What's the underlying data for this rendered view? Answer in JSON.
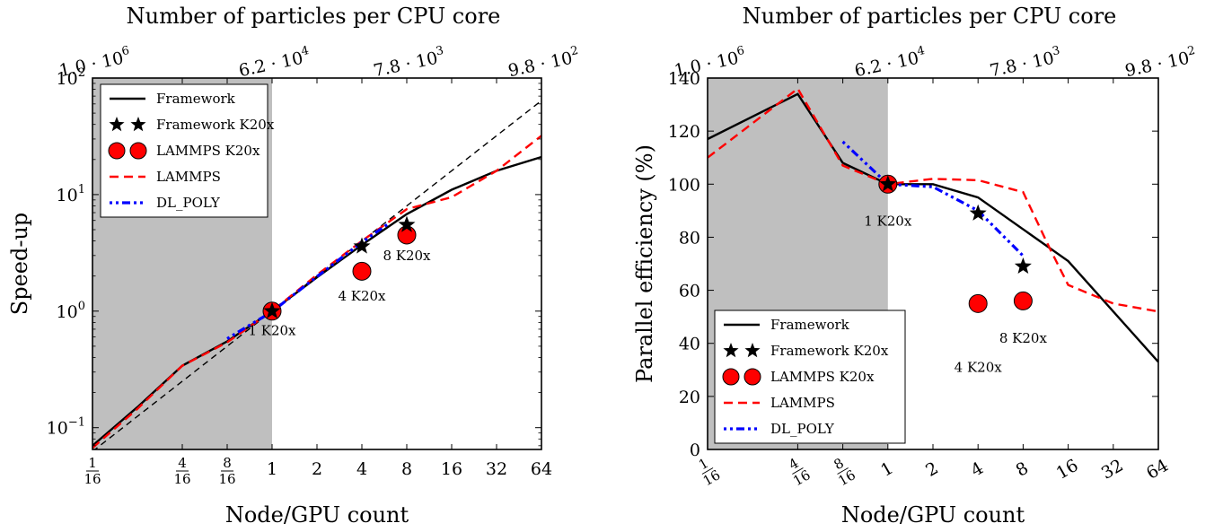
{
  "chart_data": [
    {
      "type": "line",
      "panel": "left",
      "top_title": "Number of particles per CPU core",
      "top_ticks": [
        {
          "x": 0.0625,
          "label": "1.0 · 10",
          "exp": "6"
        },
        {
          "x": 1,
          "label": "6.2 · 10",
          "exp": "4"
        },
        {
          "x": 8,
          "label": "7.8 · 10",
          "exp": "3"
        },
        {
          "x": 64,
          "label": "9.8 · 10",
          "exp": "2"
        }
      ],
      "xlabel": "Node/GPU count",
      "ylabel": "Speed-up",
      "xscale": "log2",
      "yscale": "log10",
      "xlim": [
        0.0625,
        64
      ],
      "ylim": [
        0.065,
        100
      ],
      "shaded_region": [
        0.0625,
        1
      ],
      "x_ticks": [
        {
          "x": 0.0625,
          "num": "1",
          "den": "16"
        },
        {
          "x": 0.25,
          "num": "4",
          "den": "16"
        },
        {
          "x": 0.5,
          "num": "8",
          "den": "16"
        },
        {
          "x": 1,
          "label": "1"
        },
        {
          "x": 2,
          "label": "2"
        },
        {
          "x": 4,
          "label": "4"
        },
        {
          "x": 8,
          "label": "8"
        },
        {
          "x": 16,
          "label": "16"
        },
        {
          "x": 32,
          "label": "32"
        },
        {
          "x": 64,
          "label": "64"
        }
      ],
      "y_ticks": [
        {
          "y": 0.1,
          "label": "10",
          "exp": "−1"
        },
        {
          "y": 1,
          "label": "10",
          "exp": "0"
        },
        {
          "y": 10,
          "label": "10",
          "exp": "1"
        },
        {
          "y": 100,
          "label": "10",
          "exp": "2"
        }
      ],
      "ideal_line": {
        "x": [
          0.0625,
          64
        ],
        "y": [
          0.0625,
          64
        ]
      },
      "legend_position": "top-left",
      "series": [
        {
          "name": "Framework",
          "style": "solid",
          "color": "#000000",
          "x": [
            0.0625,
            0.125,
            0.25,
            0.5,
            1,
            2,
            4,
            8,
            16,
            32,
            64
          ],
          "y": [
            0.07,
            0.15,
            0.34,
            0.55,
            1.0,
            1.95,
            3.7,
            6.8,
            11.0,
            16.0,
            21.0
          ]
        },
        {
          "name": "Framework K20x",
          "style": "star",
          "color": "#000000",
          "x": [
            1,
            4,
            8
          ],
          "y": [
            1.0,
            3.6,
            5.5
          ]
        },
        {
          "name": "LAMMPS K20x",
          "style": "circle",
          "color": "#ff0000",
          "x": [
            1,
            4,
            8
          ],
          "y": [
            1.0,
            2.2,
            4.5
          ]
        },
        {
          "name": "LAMMPS",
          "style": "dashed",
          "color": "#ff0000",
          "x": [
            0.0625,
            0.125,
            0.25,
            0.5,
            1,
            2,
            4,
            8,
            16,
            32,
            64
          ],
          "y": [
            0.067,
            0.145,
            0.34,
            0.54,
            1.0,
            2.05,
            4.0,
            7.5,
            9.5,
            16.0,
            32.0
          ]
        },
        {
          "name": "DL_POLY",
          "style": "dashdot",
          "color": "#0000ff",
          "x": [
            0.5,
            1,
            2,
            4,
            6
          ],
          "y": [
            0.58,
            0.99,
            1.98,
            3.9,
            5.6
          ]
        }
      ],
      "annotations": [
        {
          "text": "1 K20x",
          "x": 1,
          "y": 0.68
        },
        {
          "text": "4 K20x",
          "x": 4,
          "y": 1.35
        },
        {
          "text": "8 K20x",
          "x": 8,
          "y": 3.0
        }
      ]
    },
    {
      "type": "line",
      "panel": "right",
      "top_title": "Number of particles per CPU core",
      "top_ticks": [
        {
          "x": 0.0625,
          "label": "1.0 · 10",
          "exp": "6"
        },
        {
          "x": 1,
          "label": "6.2 · 10",
          "exp": "4"
        },
        {
          "x": 8,
          "label": "7.8 · 10",
          "exp": "3"
        },
        {
          "x": 64,
          "label": "9.8 · 10",
          "exp": "2"
        }
      ],
      "xlabel": "Node/GPU count",
      "ylabel": "Parallel efficiency (%)",
      "xscale": "log2",
      "yscale": "linear",
      "xlim": [
        0.0625,
        64
      ],
      "ylim": [
        0,
        140
      ],
      "shaded_region": [
        0.0625,
        1
      ],
      "x_ticks": [
        {
          "x": 0.0625,
          "num": "1",
          "den": "16"
        },
        {
          "x": 0.25,
          "num": "4",
          "den": "16"
        },
        {
          "x": 0.5,
          "num": "8",
          "den": "16"
        },
        {
          "x": 1,
          "label": "1"
        },
        {
          "x": 2,
          "label": "2"
        },
        {
          "x": 4,
          "label": "4"
        },
        {
          "x": 8,
          "label": "8"
        },
        {
          "x": 16,
          "label": "16"
        },
        {
          "x": 32,
          "label": "32"
        },
        {
          "x": 64,
          "label": "64"
        }
      ],
      "y_ticks": [
        {
          "y": 0,
          "label": "0"
        },
        {
          "y": 20,
          "label": "20"
        },
        {
          "y": 40,
          "label": "40"
        },
        {
          "y": 60,
          "label": "60"
        },
        {
          "y": 80,
          "label": "80"
        },
        {
          "y": 100,
          "label": "100"
        },
        {
          "y": 120,
          "label": "120"
        },
        {
          "y": 140,
          "label": "140"
        }
      ],
      "legend_position": "bottom-left",
      "series": [
        {
          "name": "Framework",
          "style": "solid",
          "color": "#000000",
          "x": [
            0.0625,
            0.25,
            0.5,
            1,
            2,
            4,
            8,
            16,
            64
          ],
          "y": [
            117,
            134,
            108,
            100,
            100,
            95,
            83,
            71,
            33
          ]
        },
        {
          "name": "Framework K20x",
          "style": "star",
          "color": "#000000",
          "x": [
            1,
            4,
            8
          ],
          "y": [
            100,
            89,
            69
          ]
        },
        {
          "name": "LAMMPS K20x",
          "style": "circle",
          "color": "#ff0000",
          "x": [
            1,
            4,
            8
          ],
          "y": [
            100,
            55,
            56
          ]
        },
        {
          "name": "LAMMPS",
          "style": "dashed",
          "color": "#ff0000",
          "x": [
            0.0625,
            0.25,
            0.5,
            1,
            2,
            4,
            8,
            12,
            16,
            32,
            64
          ],
          "y": [
            110,
            136,
            107,
            100,
            102,
            101.5,
            97,
            76,
            62,
            55,
            52
          ]
        },
        {
          "name": "DL_POLY",
          "style": "dashdot",
          "color": "#0000ff",
          "x": [
            0.5,
            1,
            2,
            4,
            8
          ],
          "y": [
            116,
            100,
            99,
            90,
            73
          ]
        }
      ],
      "annotations": [
        {
          "text": "1 K20x",
          "x": 1,
          "y": 86
        },
        {
          "text": "8 K20x",
          "x": 8,
          "y": 42
        },
        {
          "text": "4 K20x",
          "x": 4,
          "y": 31
        }
      ]
    }
  ]
}
